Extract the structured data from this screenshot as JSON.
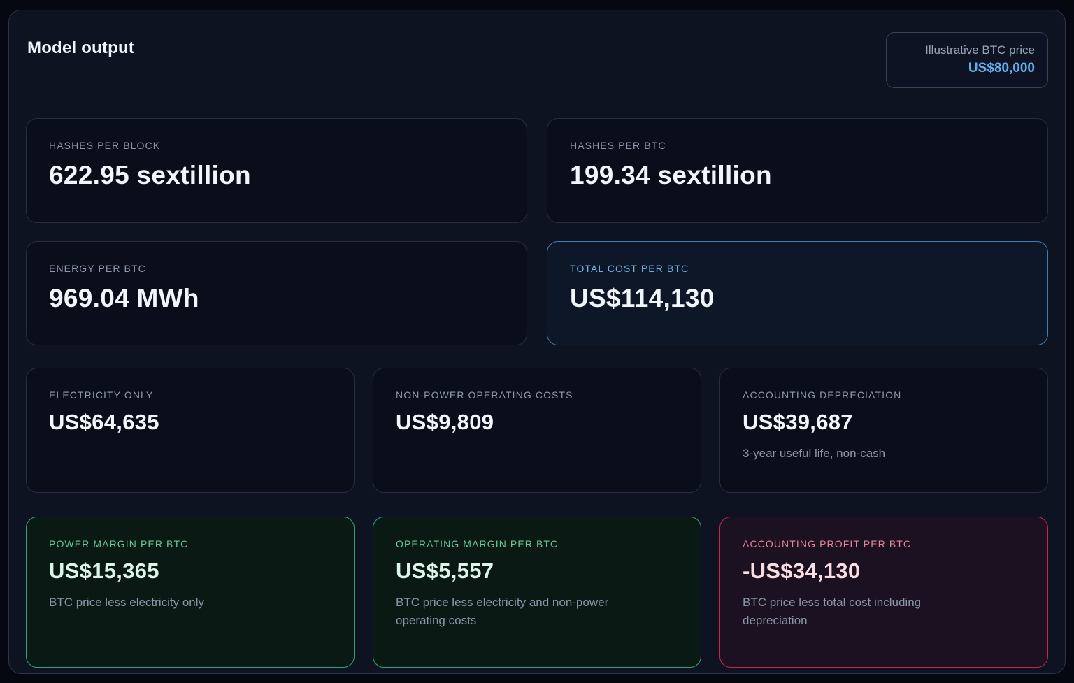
{
  "header": {
    "title": "Model output",
    "badge": {
      "label": "Illustrative BTC price",
      "value": "US$80,000"
    }
  },
  "cards": [
    {
      "label": "HASHES PER BLOCK",
      "value": "622.95 sextillion"
    },
    {
      "label": "HASHES PER BTC",
      "value": "199.34 sextillion"
    },
    {
      "label": "ENERGY PER BTC",
      "value": "969.04 MWh"
    },
    {
      "label": "TOTAL COST PER BTC",
      "value": "US$114,130",
      "variant": "blue"
    },
    {
      "label": "ELECTRICITY ONLY",
      "value": "US$64,635"
    },
    {
      "label": "NON-POWER OPERATING COSTS",
      "value": "US$9,809"
    },
    {
      "label": "ACCOUNTING DEPRECIATION",
      "value": "US$39,687",
      "note": "3-year useful life, non-cash"
    },
    {
      "label": "POWER MARGIN PER BTC",
      "value": "US$15,365",
      "note": "BTC price less electricity only",
      "variant": "green"
    },
    {
      "label": "OPERATING MARGIN PER BTC",
      "value": "US$5,557",
      "note": "BTC price less electricity and non-power operating costs",
      "variant": "green"
    },
    {
      "label": "ACCOUNTING PROFIT PER BTC",
      "value": "-US$34,130",
      "note": "BTC price less total cost including depreciation",
      "variant": "red"
    }
  ],
  "colors": {
    "accent_blue_border": "#3c7fb6",
    "accent_blue_label": "#6fb2e4",
    "accent_green_border": "#35a274",
    "accent_green_label": "#5fcb94",
    "accent_red_border": "#d02149",
    "accent_red_label": "#e28399",
    "badge_value_blue": "#5fb0ee",
    "panel_background": "#0e1322",
    "card_background": "#0a0e1b"
  }
}
